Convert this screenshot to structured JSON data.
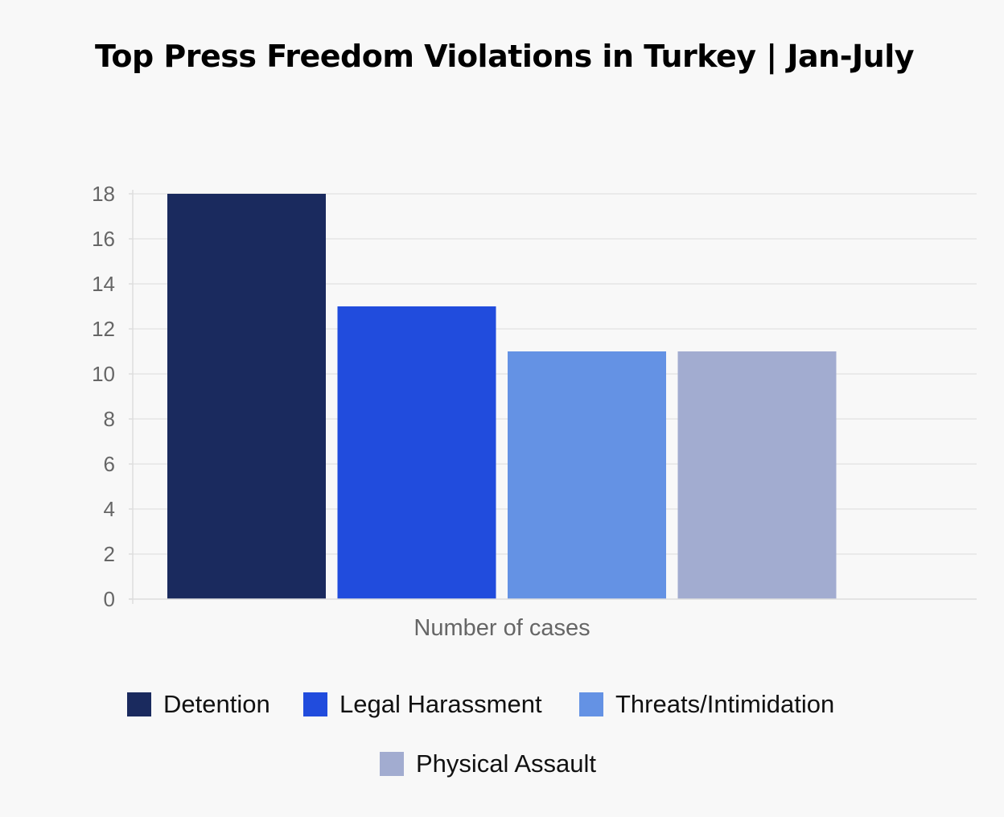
{
  "chart_data": {
    "type": "bar",
    "title": "Top Press Freedom Violations in Turkey | Jan-July",
    "xlabel": "Number of cases",
    "ylabel": "",
    "ylim": [
      0,
      18
    ],
    "yticks": [
      0,
      2,
      4,
      6,
      8,
      10,
      12,
      14,
      16,
      18
    ],
    "grid": true,
    "legend_position": "bottom",
    "categories": [
      "Number of cases"
    ],
    "series": [
      {
        "name": "Detention",
        "values": [
          18
        ],
        "color": "#1a2a5e"
      },
      {
        "name": "Legal Harassment",
        "values": [
          13
        ],
        "color": "#214cdd"
      },
      {
        "name": "Threats/Intimidation",
        "values": [
          11
        ],
        "color": "#6492e4"
      },
      {
        "name": "Physical Assault",
        "values": [
          11
        ],
        "color": "#a2acd0"
      }
    ]
  }
}
